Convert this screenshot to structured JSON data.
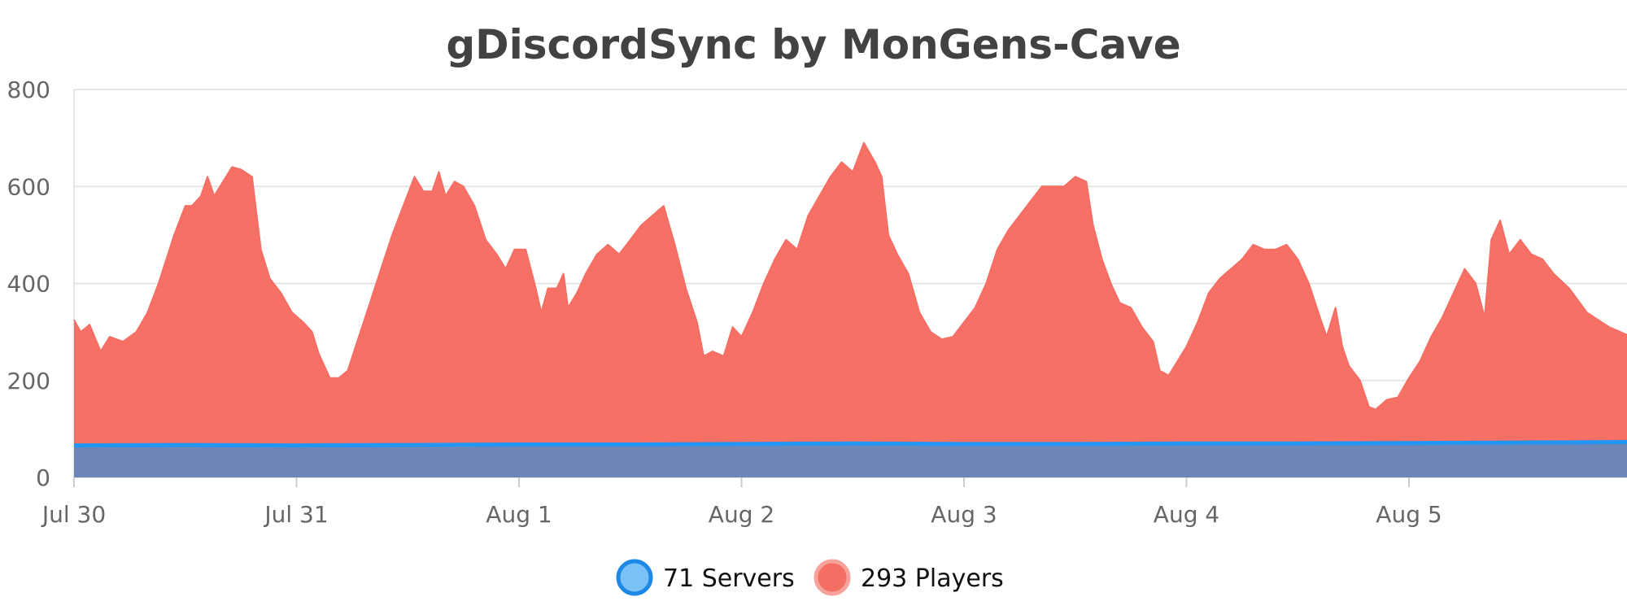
{
  "chart_data": {
    "type": "area",
    "title": "gDiscordSync by MonGens-Cave",
    "xlabel": "",
    "ylabel": "",
    "ylim": [
      0,
      800
    ],
    "yticks": [
      0,
      200,
      400,
      600,
      800
    ],
    "grid": true,
    "legend_position": "bottom-center",
    "x_tick_labels": [
      "Jul 30",
      "Jul 31",
      "Aug 1",
      "Aug 2",
      "Aug 3",
      "Aug 4",
      "Aug 5"
    ],
    "x_range_days": [
      0,
      7.3
    ],
    "series": [
      {
        "name": "Servers",
        "legend_label": "71 Servers",
        "color": "#2196f3",
        "fill": "#6f86b8",
        "points": [
          [
            0,
            66
          ],
          [
            0.5,
            67
          ],
          [
            1,
            66
          ],
          [
            1.5,
            67
          ],
          [
            2,
            68
          ],
          [
            2.5,
            68
          ],
          [
            3,
            69
          ],
          [
            3.5,
            70
          ],
          [
            4,
            69
          ],
          [
            4.5,
            69
          ],
          [
            5,
            70
          ],
          [
            5.5,
            70
          ],
          [
            6,
            71
          ],
          [
            6.5,
            72
          ],
          [
            7,
            73
          ],
          [
            7.3,
            73
          ]
        ]
      },
      {
        "name": "Players",
        "legend_label": "293 Players",
        "color": "#f46e63",
        "fill": "#f77066",
        "points": [
          [
            0,
            325
          ],
          [
            0.03,
            300
          ],
          [
            0.07,
            315
          ],
          [
            0.12,
            260
          ],
          [
            0.16,
            290
          ],
          [
            0.22,
            280
          ],
          [
            0.28,
            300
          ],
          [
            0.33,
            340
          ],
          [
            0.38,
            400
          ],
          [
            0.45,
            500
          ],
          [
            0.5,
            560
          ],
          [
            0.53,
            560
          ],
          [
            0.57,
            580
          ],
          [
            0.6,
            620
          ],
          [
            0.63,
            580
          ],
          [
            0.67,
            610
          ],
          [
            0.71,
            640
          ],
          [
            0.75,
            635
          ],
          [
            0.8,
            620
          ],
          [
            0.84,
            470
          ],
          [
            0.88,
            410
          ],
          [
            0.93,
            380
          ],
          [
            0.98,
            340
          ],
          [
            1.03,
            320
          ],
          [
            1.07,
            300
          ],
          [
            1.1,
            255
          ],
          [
            1.15,
            205
          ],
          [
            1.19,
            205
          ],
          [
            1.23,
            220
          ],
          [
            1.28,
            290
          ],
          [
            1.33,
            360
          ],
          [
            1.38,
            430
          ],
          [
            1.43,
            500
          ],
          [
            1.48,
            560
          ],
          [
            1.53,
            620
          ],
          [
            1.57,
            590
          ],
          [
            1.61,
            590
          ],
          [
            1.64,
            630
          ],
          [
            1.67,
            580
          ],
          [
            1.71,
            610
          ],
          [
            1.75,
            600
          ],
          [
            1.8,
            560
          ],
          [
            1.85,
            490
          ],
          [
            1.9,
            460
          ],
          [
            1.94,
            430
          ],
          [
            1.98,
            470
          ],
          [
            2.03,
            470
          ],
          [
            2.07,
            400
          ],
          [
            2.1,
            340
          ],
          [
            2.13,
            390
          ],
          [
            2.17,
            390
          ],
          [
            2.2,
            420
          ],
          [
            2.22,
            350
          ],
          [
            2.26,
            380
          ],
          [
            2.3,
            420
          ],
          [
            2.35,
            460
          ],
          [
            2.4,
            480
          ],
          [
            2.45,
            460
          ],
          [
            2.5,
            490
          ],
          [
            2.55,
            520
          ],
          [
            2.6,
            540
          ],
          [
            2.65,
            560
          ],
          [
            2.7,
            480
          ],
          [
            2.75,
            390
          ],
          [
            2.8,
            320
          ],
          [
            2.83,
            250
          ],
          [
            2.87,
            260
          ],
          [
            2.92,
            250
          ],
          [
            2.96,
            310
          ],
          [
            3.0,
            290
          ],
          [
            3.05,
            340
          ],
          [
            3.1,
            400
          ],
          [
            3.15,
            450
          ],
          [
            3.2,
            490
          ],
          [
            3.25,
            470
          ],
          [
            3.3,
            540
          ],
          [
            3.35,
            580
          ],
          [
            3.4,
            620
          ],
          [
            3.45,
            650
          ],
          [
            3.5,
            630
          ],
          [
            3.55,
            690
          ],
          [
            3.6,
            650
          ],
          [
            3.63,
            620
          ],
          [
            3.66,
            500
          ],
          [
            3.7,
            460
          ],
          [
            3.75,
            420
          ],
          [
            3.8,
            340
          ],
          [
            3.85,
            300
          ],
          [
            3.9,
            285
          ],
          [
            3.95,
            290
          ],
          [
            4.0,
            320
          ],
          [
            4.05,
            350
          ],
          [
            4.1,
            400
          ],
          [
            4.15,
            470
          ],
          [
            4.2,
            510
          ],
          [
            4.25,
            540
          ],
          [
            4.3,
            570
          ],
          [
            4.35,
            600
          ],
          [
            4.4,
            600
          ],
          [
            4.45,
            600
          ],
          [
            4.5,
            620
          ],
          [
            4.55,
            610
          ],
          [
            4.58,
            520
          ],
          [
            4.62,
            450
          ],
          [
            4.66,
            400
          ],
          [
            4.7,
            360
          ],
          [
            4.75,
            350
          ],
          [
            4.8,
            310
          ],
          [
            4.85,
            280
          ],
          [
            4.88,
            220
          ],
          [
            4.92,
            210
          ],
          [
            4.96,
            240
          ],
          [
            5.0,
            270
          ],
          [
            5.05,
            320
          ],
          [
            5.1,
            380
          ],
          [
            5.15,
            410
          ],
          [
            5.2,
            430
          ],
          [
            5.25,
            450
          ],
          [
            5.3,
            480
          ],
          [
            5.35,
            470
          ],
          [
            5.4,
            470
          ],
          [
            5.45,
            480
          ],
          [
            5.5,
            450
          ],
          [
            5.55,
            400
          ],
          [
            5.6,
            330
          ],
          [
            5.63,
            290
          ],
          [
            5.67,
            350
          ],
          [
            5.7,
            270
          ],
          [
            5.73,
            230
          ],
          [
            5.78,
            200
          ],
          [
            5.82,
            145
          ],
          [
            5.85,
            140
          ],
          [
            5.9,
            160
          ],
          [
            5.95,
            165
          ],
          [
            6.0,
            205
          ],
          [
            6.05,
            240
          ],
          [
            6.1,
            290
          ],
          [
            6.15,
            330
          ],
          [
            6.2,
            380
          ],
          [
            6.25,
            430
          ],
          [
            6.3,
            400
          ],
          [
            6.34,
            330
          ],
          [
            6.37,
            490
          ],
          [
            6.41,
            530
          ],
          [
            6.45,
            460
          ],
          [
            6.5,
            490
          ],
          [
            6.55,
            460
          ],
          [
            6.6,
            450
          ],
          [
            6.65,
            420
          ],
          [
            6.72,
            390
          ],
          [
            6.8,
            340
          ],
          [
            6.9,
            310
          ],
          [
            7.0,
            290
          ],
          [
            7.1,
            270
          ],
          [
            7.2,
            250
          ],
          [
            7.3,
            240
          ]
        ]
      }
    ]
  },
  "colors": {
    "servers_line": "#2196f3",
    "servers_fill": "#6f86b8",
    "players_line": "#f46e63",
    "players_fill": "#f77066",
    "grid": "#e6e6e6"
  }
}
